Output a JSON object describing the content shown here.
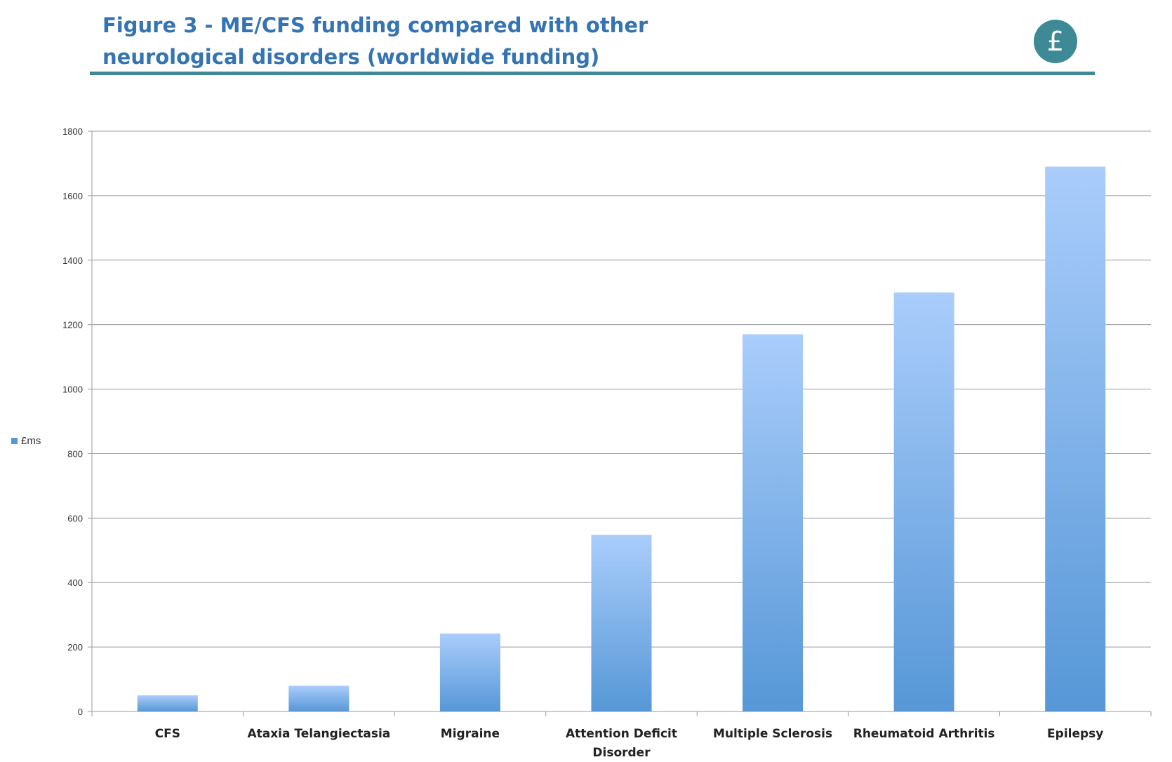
{
  "header": {
    "title_line1": "Figure 3 - ME/CFS funding compared with other",
    "title_line2": "neurological disorders (worldwide funding)",
    "badge_symbol": "£",
    "accent_color": "#3d8a96",
    "title_color": "#3574b2"
  },
  "chart_data": {
    "type": "bar",
    "title": "Figure 3 - ME/CFS funding compared with other neurological disorders (worldwide funding)",
    "categories": [
      "CFS",
      "Ataxia Telangiectasia",
      "Migraine",
      "Attention Deficit Disorder",
      "Multiple Sclerosis",
      "Rheumatoid Arthritis",
      "Epilepsy"
    ],
    "series": [
      {
        "name": "£ms",
        "values": [
          50,
          80,
          242,
          548,
          1170,
          1300,
          1690
        ]
      }
    ],
    "xlabel": "",
    "ylabel": "",
    "ylim": [
      0,
      1800
    ],
    "yticks": [
      0,
      200,
      400,
      600,
      800,
      1000,
      1200,
      1400,
      1600,
      1800
    ],
    "grid": true,
    "legend": "left",
    "bar_color_top": "#aacdfb",
    "bar_color_bottom": "#5697d7"
  }
}
